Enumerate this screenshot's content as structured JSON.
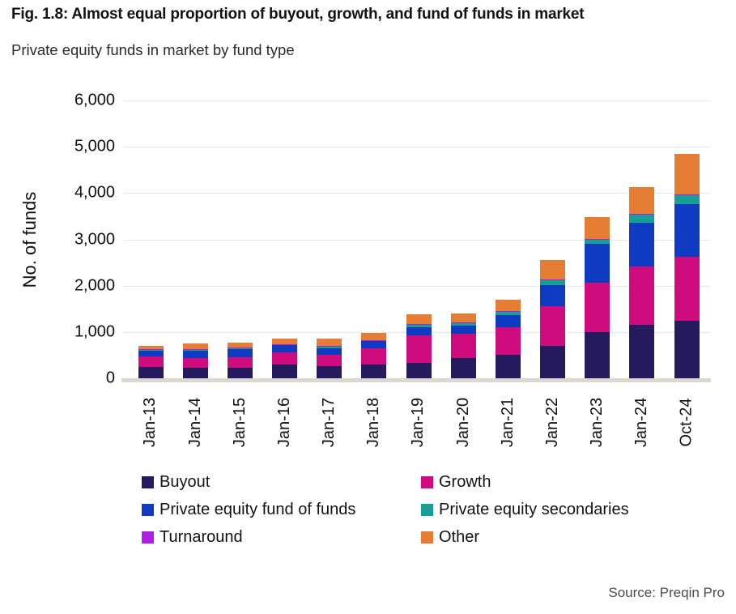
{
  "header": {
    "title": "Fig. 1.8: Almost equal proportion of buyout, growth, and fund of funds in market",
    "subtitle": "Private equity funds in market by fund type"
  },
  "source": "Source: Preqin Pro",
  "chart_data": {
    "type": "bar",
    "stacked": true,
    "title": "Private equity funds in market by fund type",
    "xlabel": "",
    "ylabel": "No. of funds",
    "ylim": [
      0,
      6000
    ],
    "yticks": [
      0,
      1000,
      2000,
      3000,
      4000,
      5000,
      6000
    ],
    "ytick_labels": [
      "0",
      "1,000",
      "2,000",
      "3,000",
      "4,000",
      "5,000",
      "6,000"
    ],
    "grid": true,
    "legend_position": "bottom",
    "categories": [
      "Jan-13",
      "Jan-14",
      "Jan-15",
      "Jan-16",
      "Jan-17",
      "Jan-18",
      "Jan-19",
      "Jan-20",
      "Jan-21",
      "Jan-22",
      "Jan-23",
      "Jan-24",
      "Oct-24"
    ],
    "series": [
      {
        "name": "Buyout",
        "color": "#261a5e",
        "values": [
          240,
          230,
          235,
          300,
          260,
          290,
          325,
          430,
          500,
          700,
          990,
          1150,
          1250
        ]
      },
      {
        "name": "Growth",
        "color": "#ce0c7e",
        "values": [
          225,
          200,
          220,
          260,
          240,
          365,
          610,
          535,
          610,
          855,
          1080,
          1270,
          1380
        ]
      },
      {
        "name": "Private equity fund of funds",
        "color": "#0f3bc2",
        "values": [
          130,
          175,
          185,
          150,
          140,
          145,
          175,
          180,
          250,
          465,
          830,
          930,
          1130
        ]
      },
      {
        "name": "Private equity secondaries",
        "color": "#16a095",
        "values": [
          15,
          15,
          10,
          20,
          45,
          20,
          60,
          60,
          75,
          100,
          100,
          185,
          200
        ]
      },
      {
        "name": "Turnaround",
        "color": "#ac1fe5",
        "values": [
          20,
          10,
          10,
          10,
          10,
          10,
          10,
          10,
          10,
          10,
          10,
          10,
          15
        ]
      },
      {
        "name": "Other",
        "color": "#e57d34",
        "values": [
          75,
          120,
          115,
          120,
          160,
          150,
          200,
          190,
          255,
          420,
          475,
          575,
          870
        ]
      }
    ]
  }
}
